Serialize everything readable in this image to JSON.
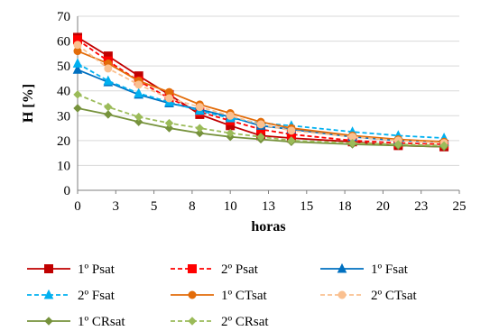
{
  "chart_data": {
    "type": "line",
    "title": "",
    "xlabel": "horas",
    "ylabel": "H  [%]",
    "xlim": [
      0,
      25
    ],
    "ylim": [
      0,
      70
    ],
    "x_ticks": [
      "0",
      "3",
      "5",
      "8",
      "10",
      "13",
      "15",
      "18",
      "20",
      "23",
      "25"
    ],
    "y_ticks": [
      "0",
      "10",
      "20",
      "30",
      "40",
      "50",
      "60",
      "70"
    ],
    "grid": "horizontal",
    "legend_position": "bottom",
    "series": [
      {
        "name": "1º Psat",
        "color": "#c00000",
        "dash": "solid",
        "marker": "square",
        "x": [
          0,
          2,
          4,
          6,
          8,
          10,
          12,
          14,
          18,
          21,
          24
        ],
        "y": [
          61.5,
          54,
          46,
          38.5,
          30.5,
          26,
          22,
          21,
          19.5,
          18,
          17.5
        ]
      },
      {
        "name": "2º Psat",
        "color": "#ff0000",
        "dash": "dashed",
        "marker": "square",
        "x": [
          0,
          2,
          4,
          6,
          8,
          10,
          12,
          14,
          18,
          21,
          24
        ],
        "y": [
          60.5,
          52,
          44,
          37,
          31.5,
          28,
          24.5,
          22.5,
          20,
          19,
          18.5
        ]
      },
      {
        "name": "1º Fsat",
        "color": "#0070c0",
        "dash": "solid",
        "marker": "triangle",
        "x": [
          0,
          2,
          4,
          6,
          8,
          10,
          12,
          14,
          18,
          21,
          24
        ],
        "y": [
          48.5,
          43.5,
          38.5,
          35,
          32.5,
          29.5,
          26,
          24.5,
          21.5,
          20,
          19.5
        ]
      },
      {
        "name": "2º Fsat",
        "color": "#00b0f0",
        "dash": "dashed",
        "marker": "triangle",
        "x": [
          0,
          2,
          4,
          6,
          8,
          10,
          12,
          14,
          18,
          21,
          24
        ],
        "y": [
          51,
          44,
          39,
          35.5,
          32,
          29,
          27,
          26,
          23.5,
          22,
          21
        ]
      },
      {
        "name": "1º CTsat",
        "color": "#e36c09",
        "dash": "solid",
        "marker": "circle",
        "x": [
          0,
          2,
          4,
          6,
          8,
          10,
          12,
          14,
          18,
          21,
          24
        ],
        "y": [
          56,
          51,
          44,
          39.5,
          34.5,
          31,
          27.5,
          25,
          22,
          20.5,
          19.5
        ]
      },
      {
        "name": "2º CTsat",
        "color": "#fac090",
        "dash": "dashed",
        "marker": "circle",
        "x": [
          0,
          2,
          4,
          6,
          8,
          10,
          12,
          14,
          18,
          21,
          24
        ],
        "y": [
          58.5,
          49,
          42.5,
          37,
          33.5,
          30,
          26.5,
          24,
          21.5,
          20,
          19
        ]
      },
      {
        "name": "1º CRsat",
        "color": "#76923c",
        "dash": "solid",
        "marker": "diamond",
        "x": [
          0,
          2,
          4,
          6,
          8,
          10,
          12,
          14,
          18,
          21,
          24
        ],
        "y": [
          33,
          30.5,
          27.5,
          25,
          23,
          21.5,
          20.5,
          19.5,
          18.5,
          18,
          17.5
        ]
      },
      {
        "name": "2º CRsat",
        "color": "#9bbb59",
        "dash": "dashed",
        "marker": "diamond",
        "x": [
          0,
          2,
          4,
          6,
          8,
          10,
          12,
          14,
          18,
          21,
          24
        ],
        "y": [
          38.5,
          33.5,
          29.5,
          27,
          25,
          23,
          21.5,
          20,
          19,
          18.5,
          18
        ]
      }
    ]
  }
}
